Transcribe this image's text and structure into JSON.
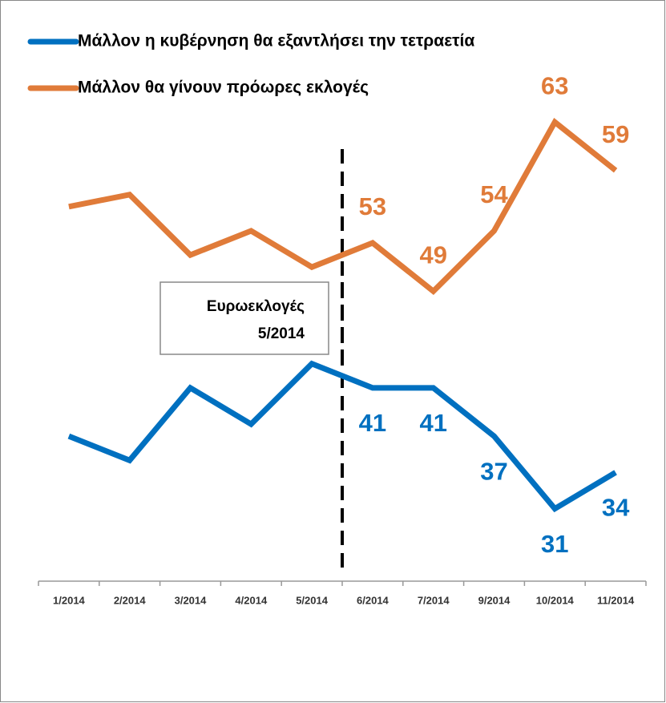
{
  "chart_data": {
    "type": "line",
    "categories": [
      "1/2014",
      "2/2014",
      "3/2014",
      "4/2014",
      "5/2014",
      "6/2014",
      "7/2014",
      "9/2014",
      "10/2014",
      "11/2014"
    ],
    "series": [
      {
        "name": "Μάλλον η κυβέρνηση θα εξαντλήσει την τετραετία",
        "color": "#0070c0",
        "values": [
          37,
          35,
          41,
          38,
          43,
          41,
          41,
          37,
          31,
          34
        ],
        "value_labels": [
          null,
          null,
          null,
          null,
          null,
          "41",
          "41",
          "37",
          "31",
          "34"
        ]
      },
      {
        "name": "Μάλλον θα γίνουν πρόωρες εκλογές",
        "color": "#e07b39",
        "values": [
          56,
          57,
          52,
          54,
          51,
          53,
          49,
          54,
          63,
          59
        ],
        "value_labels": [
          null,
          null,
          null,
          null,
          null,
          "53",
          "49",
          "54",
          "63",
          "59"
        ]
      }
    ],
    "ylim": [
      25,
      68
    ],
    "annotation": [
      "Ευρωεκλογές",
      "5/2014"
    ]
  }
}
